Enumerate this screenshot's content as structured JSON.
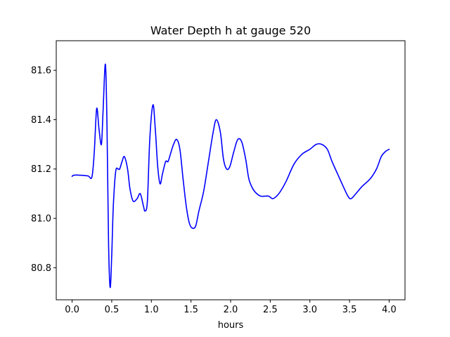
{
  "chart_data": {
    "type": "line",
    "title": "Water Depth h at gauge 520",
    "xlabel": "hours",
    "ylabel": "",
    "xlim": [
      -0.2,
      4.2
    ],
    "ylim": [
      80.67,
      81.72
    ],
    "grid": false,
    "x_ticks": [
      {
        "value": 0.0,
        "label": "0.0"
      },
      {
        "value": 0.5,
        "label": "0.5"
      },
      {
        "value": 1.0,
        "label": "1.0"
      },
      {
        "value": 1.5,
        "label": "1.5"
      },
      {
        "value": 2.0,
        "label": "2.0"
      },
      {
        "value": 2.5,
        "label": "2.5"
      },
      {
        "value": 3.0,
        "label": "3.0"
      },
      {
        "value": 3.5,
        "label": "3.5"
      },
      {
        "value": 4.0,
        "label": "4.0"
      }
    ],
    "y_ticks": [
      {
        "value": 80.8,
        "label": "80.8"
      },
      {
        "value": 81.0,
        "label": "81.0"
      },
      {
        "value": 81.2,
        "label": "81.2"
      },
      {
        "value": 81.4,
        "label": "81.4"
      },
      {
        "value": 81.6,
        "label": "81.6"
      }
    ],
    "series": [
      {
        "color": "#0000ff",
        "x": [
          0.0,
          0.02,
          0.1,
          0.2,
          0.25,
          0.28,
          0.31,
          0.34,
          0.37,
          0.39,
          0.42,
          0.44,
          0.46,
          0.48,
          0.5,
          0.52,
          0.55,
          0.58,
          0.6,
          0.63,
          0.66,
          0.7,
          0.73,
          0.77,
          0.82,
          0.86,
          0.9,
          0.92,
          0.95,
          0.98,
          1.02,
          1.05,
          1.08,
          1.11,
          1.14,
          1.18,
          1.21,
          1.24,
          1.28,
          1.32,
          1.36,
          1.4,
          1.44,
          1.48,
          1.52,
          1.56,
          1.6,
          1.66,
          1.72,
          1.78,
          1.82,
          1.87,
          1.91,
          1.95,
          1.99,
          2.04,
          2.09,
          2.14,
          2.19,
          2.23,
          2.28,
          2.33,
          2.38,
          2.43,
          2.48,
          2.53,
          2.58,
          2.63,
          2.7,
          2.8,
          2.9,
          3.0,
          3.08,
          3.15,
          3.22,
          3.28,
          3.35,
          3.42,
          3.48,
          3.52,
          3.58,
          3.66,
          3.76,
          3.84,
          3.9,
          3.95,
          4.0
        ],
        "y": [
          81.17,
          81.175,
          81.175,
          81.172,
          81.168,
          81.27,
          81.445,
          81.36,
          81.3,
          81.43,
          81.625,
          81.38,
          80.9,
          80.72,
          80.85,
          81.05,
          81.19,
          81.2,
          81.2,
          81.23,
          81.25,
          81.2,
          81.12,
          81.07,
          81.08,
          81.1,
          81.05,
          81.03,
          81.07,
          81.32,
          81.46,
          81.36,
          81.21,
          81.14,
          81.18,
          81.23,
          81.23,
          81.26,
          81.3,
          81.32,
          81.28,
          81.16,
          81.05,
          80.98,
          80.96,
          80.97,
          81.03,
          81.11,
          81.23,
          81.35,
          81.4,
          81.35,
          81.24,
          81.2,
          81.21,
          81.27,
          81.32,
          81.31,
          81.24,
          81.16,
          81.12,
          81.1,
          81.09,
          81.09,
          81.09,
          81.08,
          81.09,
          81.11,
          81.15,
          81.22,
          81.26,
          81.28,
          81.3,
          81.3,
          81.28,
          81.23,
          81.18,
          81.13,
          81.09,
          81.08,
          81.1,
          81.13,
          81.16,
          81.2,
          81.25,
          81.27,
          81.28
        ]
      }
    ]
  }
}
